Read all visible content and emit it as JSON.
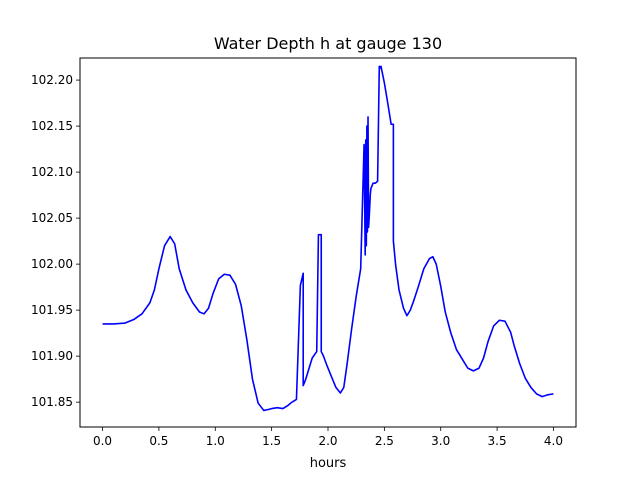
{
  "chart_data": {
    "type": "line",
    "title": "Water Depth h at gauge 130",
    "xlabel": "hours",
    "ylabel": "",
    "xlim": [
      -0.2,
      4.2
    ],
    "ylim": [
      101.823,
      102.224
    ],
    "xticks": [
      0.0,
      0.5,
      1.0,
      1.5,
      2.0,
      2.5,
      3.0,
      3.5,
      4.0
    ],
    "xtick_labels": [
      "0.0",
      "0.5",
      "1.0",
      "1.5",
      "2.0",
      "2.5",
      "3.0",
      "3.5",
      "4.0"
    ],
    "yticks": [
      101.85,
      101.9,
      101.95,
      102.0,
      102.05,
      102.1,
      102.15,
      102.2
    ],
    "ytick_labels": [
      "101.85",
      "101.90",
      "101.95",
      "102.00",
      "102.05",
      "102.10",
      "102.15",
      "102.20"
    ],
    "grid": false,
    "series": [
      {
        "color": "#0000ff",
        "x": [
          0.0,
          0.1,
          0.2,
          0.28,
          0.35,
          0.42,
          0.46,
          0.5,
          0.55,
          0.6,
          0.64,
          0.68,
          0.74,
          0.8,
          0.86,
          0.9,
          0.94,
          0.98,
          1.03,
          1.08,
          1.13,
          1.18,
          1.23,
          1.28,
          1.33,
          1.38,
          1.43,
          1.47,
          1.5,
          1.55,
          1.6,
          1.64,
          1.68,
          1.72,
          1.755,
          1.755,
          1.78,
          1.78,
          1.8,
          1.83,
          1.86,
          1.9,
          1.915,
          1.915,
          1.94,
          1.94,
          1.96,
          1.99,
          2.03,
          2.07,
          2.11,
          2.14,
          2.17,
          2.21,
          2.25,
          2.29,
          2.32,
          2.33,
          2.335,
          2.34,
          2.345,
          2.35,
          2.355,
          2.36,
          2.365,
          2.37,
          2.375,
          2.38,
          2.4,
          2.42,
          2.44,
          2.455,
          2.46,
          2.47,
          2.48,
          2.5,
          2.53,
          2.56,
          2.58,
          2.58,
          2.6,
          2.63,
          2.67,
          2.7,
          2.73,
          2.76,
          2.8,
          2.85,
          2.9,
          2.93,
          2.96,
          3.0,
          3.04,
          3.09,
          3.14,
          3.19,
          3.24,
          3.29,
          3.34,
          3.38,
          3.42,
          3.47,
          3.52,
          3.57,
          3.62,
          3.65,
          3.7,
          3.75,
          3.8,
          3.85,
          3.9,
          3.95,
          4.0
        ],
        "y": [
          101.935,
          101.935,
          101.936,
          101.94,
          101.946,
          101.958,
          101.972,
          101.995,
          102.02,
          102.03,
          102.022,
          101.995,
          101.972,
          101.958,
          101.948,
          101.946,
          101.952,
          101.968,
          101.984,
          101.989,
          101.988,
          101.978,
          101.955,
          101.918,
          101.875,
          101.849,
          101.841,
          101.842,
          101.843,
          101.844,
          101.843,
          101.846,
          101.85,
          101.853,
          101.977,
          101.977,
          101.99,
          101.868,
          101.874,
          101.886,
          101.898,
          101.905,
          102.032,
          102.032,
          102.032,
          101.905,
          101.9,
          101.89,
          101.878,
          101.866,
          101.86,
          101.866,
          101.892,
          101.93,
          101.965,
          101.995,
          102.13,
          102.01,
          102.135,
          102.02,
          102.15,
          102.035,
          102.16,
          102.04,
          102.05,
          102.062,
          102.075,
          102.082,
          102.088,
          102.088,
          102.09,
          102.215,
          102.213,
          102.215,
          102.209,
          102.197,
          102.175,
          102.152,
          102.152,
          102.025,
          101.999,
          101.972,
          101.952,
          101.944,
          101.95,
          101.96,
          101.975,
          101.995,
          102.006,
          102.008,
          102.0,
          101.976,
          101.948,
          101.925,
          101.907,
          101.897,
          101.887,
          101.884,
          101.887,
          101.898,
          101.916,
          101.933,
          101.939,
          101.938,
          101.926,
          101.912,
          101.892,
          101.876,
          101.866,
          101.859,
          101.856,
          101.858,
          101.859
        ]
      }
    ]
  }
}
